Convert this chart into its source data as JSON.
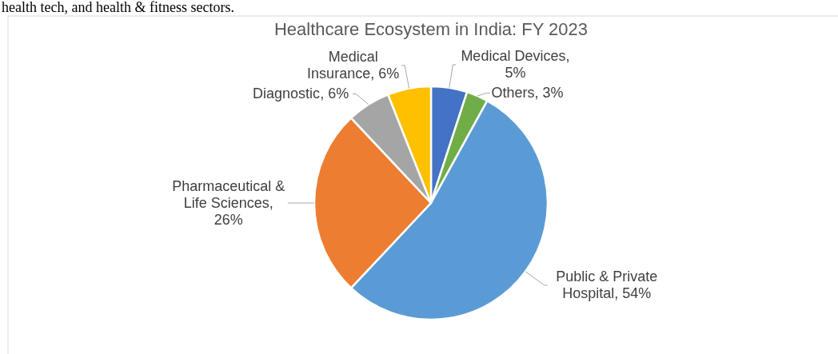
{
  "chart_data": {
    "type": "pie",
    "title": "Healthcare Ecosystem in India: FY 2023",
    "annotations": [
      "health tech, and health & fitness sectors."
    ],
    "categories": [
      "Medical Devices",
      "Others",
      "Public & Private Hospital",
      "Pharmaceutical & Life Sciences",
      "Diagnostic",
      "Medical Insurance"
    ],
    "values": [
      5,
      3,
      54,
      26,
      6,
      6
    ],
    "colors": [
      "#4472c4",
      "#70ad47",
      "#5b9bd5",
      "#ed7d31",
      "#a5a5a5",
      "#ffc000"
    ],
    "value_labels": [
      ", 5%",
      ", 3%",
      ", 54%",
      ", 26%",
      ", 6%",
      ", 6%"
    ],
    "legend": false
  }
}
